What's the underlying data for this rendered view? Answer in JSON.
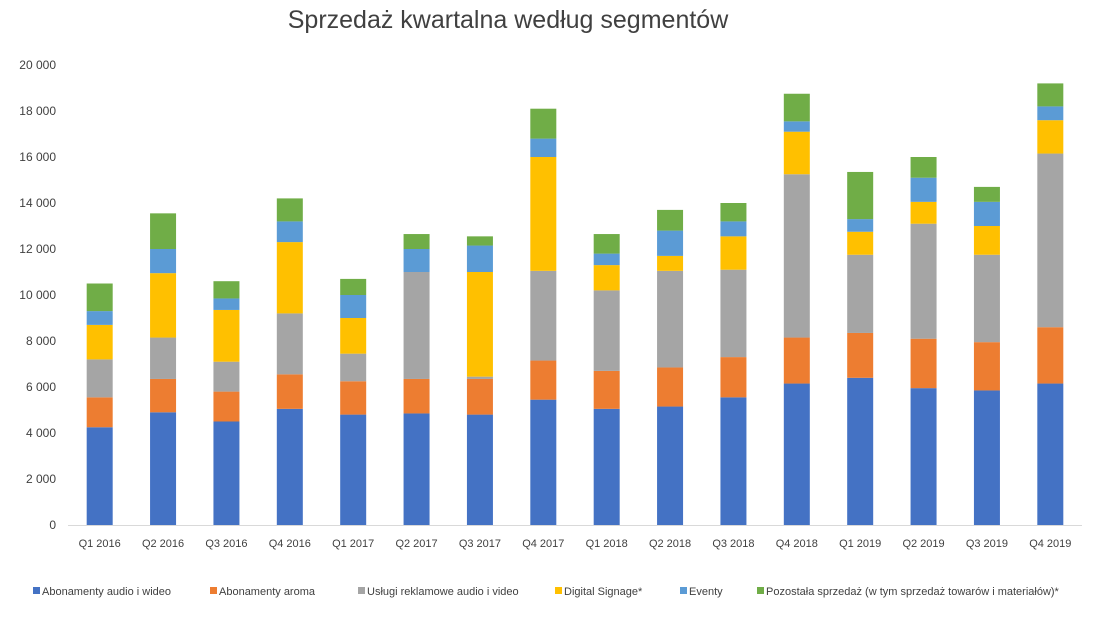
{
  "chart_data": {
    "type": "bar",
    "stacked": true,
    "title": "Sprzedaż kwartalna według segmentów",
    "xlabel": "",
    "ylabel": "",
    "ylim": [
      0,
      20000
    ],
    "y_ticks": [
      0,
      2000,
      4000,
      6000,
      8000,
      10000,
      12000,
      14000,
      16000,
      18000,
      20000
    ],
    "y_tick_labels": [
      "0",
      "2 000",
      "4 000",
      "6 000",
      "8 000",
      "10 000",
      "12 000",
      "14 000",
      "16 000",
      "18 000",
      "20 000"
    ],
    "grid": false,
    "legend_position": "bottom",
    "categories": [
      "Q1 2016",
      "Q2 2016",
      "Q3 2016",
      "Q4 2016",
      "Q1 2017",
      "Q2 2017",
      "Q3 2017",
      "Q4 2017",
      "Q1 2018",
      "Q2 2018",
      "Q3 2018",
      "Q4 2018",
      "Q1 2019",
      "Q2 2019",
      "Q3 2019",
      "Q4 2019"
    ],
    "series": [
      {
        "name": "Abonamenty audio i wideo",
        "color": "#4472C4",
        "values": [
          4250,
          4900,
          4500,
          5050,
          4800,
          4850,
          4800,
          5450,
          5050,
          5150,
          5550,
          6150,
          6400,
          5950,
          5850,
          6150
        ]
      },
      {
        "name": "Abonamenty aroma",
        "color": "#ED7D31",
        "values": [
          1300,
          1450,
          1300,
          1500,
          1450,
          1500,
          1550,
          1700,
          1650,
          1700,
          1750,
          2000,
          1950,
          2150,
          2100,
          2450
        ]
      },
      {
        "name": "Usługi reklamowe audio i video",
        "color": "#A5A5A5",
        "values": [
          1650,
          1800,
          1300,
          2650,
          1200,
          4650,
          100,
          3900,
          3500,
          4200,
          3800,
          7100,
          3400,
          5000,
          3800,
          7550
        ]
      },
      {
        "name": "Digital Signage*",
        "color": "#FFC000",
        "values": [
          1500,
          2800,
          2250,
          3100,
          1550,
          0,
          4550,
          4950,
          1100,
          650,
          1450,
          1850,
          1000,
          950,
          1250,
          1450
        ]
      },
      {
        "name": "Eventy",
        "color": "#5B9BD5",
        "values": [
          600,
          1050,
          500,
          900,
          1000,
          1000,
          1150,
          800,
          500,
          1100,
          650,
          450,
          550,
          1050,
          1050,
          600
        ]
      },
      {
        "name": "Pozostała sprzedaż (w tym sprzedaż towarów i materiałów)*",
        "color": "#70AD47",
        "values": [
          1200,
          1550,
          750,
          1000,
          700,
          650,
          400,
          1300,
          850,
          900,
          800,
          1200,
          2050,
          900,
          650,
          1000
        ]
      }
    ]
  }
}
